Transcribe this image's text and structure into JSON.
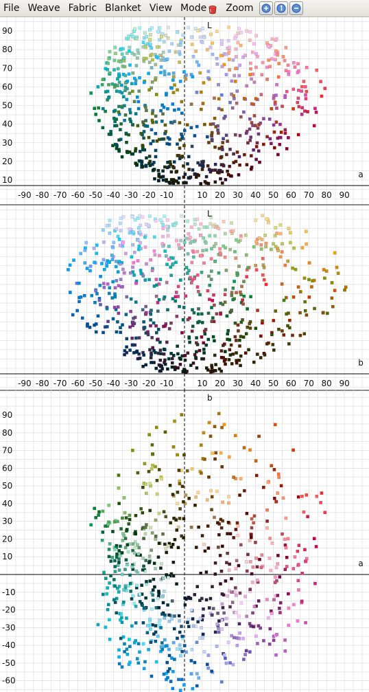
{
  "menu": {
    "file": "File",
    "weave": "Weave",
    "fabric": "Fabric",
    "blanket": "Blanket",
    "view": "View",
    "mode": "Mode",
    "zoom": "Zoom"
  },
  "icons": {
    "mode": "paint-bucket-icon",
    "zoom_in": "zoom-in-icon",
    "zoom_reset": "zoom-reset-icon",
    "zoom_out": "zoom-out-icon"
  },
  "colors": {
    "grid": "#d9d9d9",
    "axis": "#000000",
    "menubar": "#e9e8e3"
  },
  "chart_data": [
    {
      "type": "scatter",
      "title": "",
      "x_axis_label": "a",
      "y_axis_label": "L",
      "x_range": [
        -100,
        100
      ],
      "y_range": [
        5,
        97
      ],
      "x_ticks": [
        "-90",
        "-80",
        "-70",
        "-60",
        "-50",
        "-40",
        "-30",
        "-20",
        "-10",
        "10",
        "20",
        "30",
        "40",
        "50",
        "60",
        "70",
        "80",
        "90"
      ],
      "y_ticks": [
        "10",
        "20",
        "30",
        "40",
        "50",
        "60",
        "70",
        "80",
        "90"
      ],
      "grid": true,
      "note": "color point cloud projected onto a-L plane"
    },
    {
      "type": "scatter",
      "title": "",
      "x_axis_label": "b",
      "y_axis_label": "L",
      "x_range": [
        -100,
        100
      ],
      "y_range": [
        5,
        97
      ],
      "x_ticks": [
        "-90",
        "-80",
        "-70",
        "-60",
        "-50",
        "-40",
        "-30",
        "-20",
        "-10",
        "10",
        "20",
        "30",
        "40",
        "50",
        "60",
        "70",
        "80",
        "90"
      ],
      "y_ticks": [],
      "grid": true,
      "note": "color point cloud projected onto b-L plane"
    },
    {
      "type": "scatter",
      "title": "",
      "x_axis_label": "a",
      "y_axis_label": "b",
      "x_range": [
        -100,
        100
      ],
      "y_range": [
        -63,
        97
      ],
      "x_ticks": [],
      "y_ticks": [
        "90",
        "80",
        "70",
        "60",
        "50",
        "40",
        "30",
        "20",
        "10",
        "-10",
        "-20",
        "-30",
        "-40",
        "-50",
        "-60"
      ],
      "grid": true,
      "note": "color point cloud projected onto a-b plane"
    }
  ]
}
